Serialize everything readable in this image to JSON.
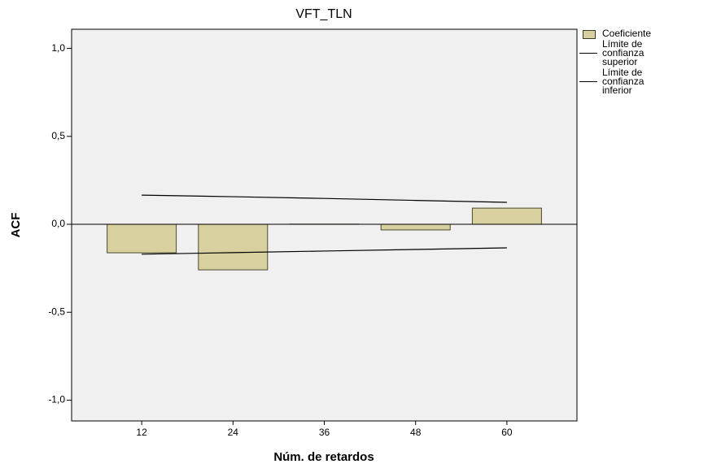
{
  "chart_data": {
    "type": "bar",
    "title": "VFT_TLN",
    "x_label": "Núm. de retardos",
    "y_label": "ACF",
    "categories": [
      "12",
      "24",
      "36",
      "48",
      "60"
    ],
    "series": [
      {
        "name": "Coeficiente",
        "color": "#d8d09e",
        "values": [
          -0.162,
          -0.259,
          0.001,
          -0.032,
          0.092
        ]
      },
      {
        "name": "Límite de confianza superior",
        "color": "#000000",
        "type": "line",
        "values": [
          0.166,
          0.157,
          0.147,
          0.136,
          0.125
        ]
      },
      {
        "name": "Límite de confianza inferior",
        "color": "#000000",
        "type": "line",
        "values": [
          -0.17,
          -0.161,
          -0.152,
          -0.143,
          -0.134
        ]
      }
    ],
    "ylim": [
      -1.118,
      1.109
    ],
    "yticks": [
      {
        "value": -1,
        "label": "-1,0"
      },
      {
        "value": -0.5,
        "label": "-0,5"
      },
      {
        "value": 0,
        "label": "0,0"
      },
      {
        "value": 0.5,
        "label": "0,5"
      },
      {
        "value": 1,
        "label": "1,0"
      }
    ],
    "legend": "right"
  }
}
